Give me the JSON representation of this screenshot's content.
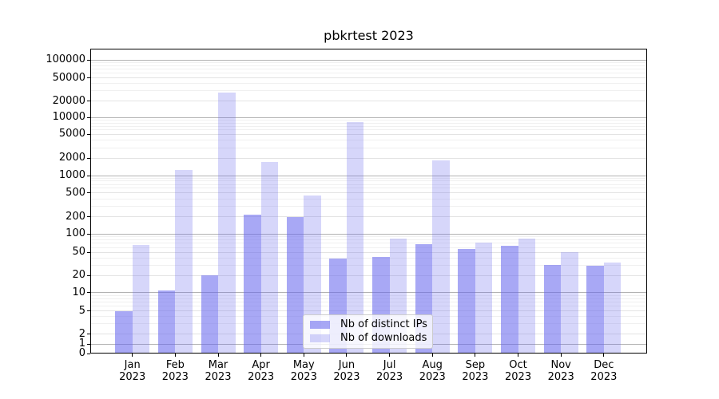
{
  "chart_data": {
    "type": "bar",
    "title": "pbkrtest 2023",
    "categories": [
      "Jan",
      "Feb",
      "Mar",
      "Apr",
      "May",
      "Jun",
      "Jul",
      "Aug",
      "Sep",
      "Oct",
      "Nov",
      "Dec"
    ],
    "category_year": "2023",
    "series": [
      {
        "name": "Nb of distinct IPs",
        "color": "rgba(102,102,238,0.57)",
        "values": [
          5,
          11,
          20,
          215,
          200,
          39,
          41,
          68,
          57,
          64,
          30,
          29
        ]
      },
      {
        "name": "Nb of downloads",
        "color": "rgba(102,102,238,0.27)",
        "values": [
          66,
          1250,
          28000,
          1700,
          450,
          8200,
          85,
          1850,
          73,
          85,
          50,
          33
        ]
      }
    ],
    "xlabel": "",
    "ylabel": "",
    "y_scale": "log-like (0,1,2,5 sequence)",
    "y_ticks": [
      0,
      1,
      2,
      5,
      10,
      20,
      50,
      100,
      200,
      500,
      1000,
      2000,
      5000,
      10000,
      20000,
      50000,
      100000
    ],
    "ylim": [
      0,
      140000
    ],
    "grid": true,
    "legend_position": "lower center"
  },
  "colors": {
    "background": "#ffffff",
    "bar_base": "#6666ee",
    "grid_decade": "#b3b3b3",
    "grid_labeled": "#e3e3e3",
    "grid_minor": "#f0f0f0",
    "spine": "#000000",
    "text": "#000000",
    "legend_border": "#cccccc"
  }
}
